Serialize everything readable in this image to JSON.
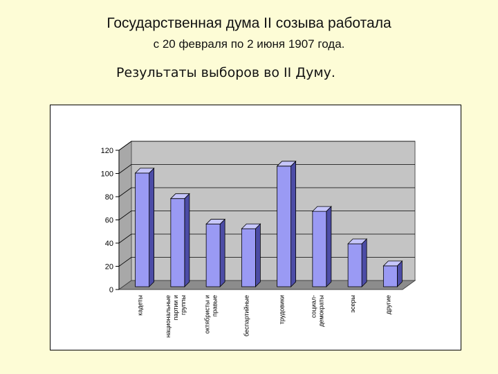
{
  "header": {
    "line1": "Государственная дума II созыва работала",
    "line2": "с 20 февраля по 2 июня 1907 года.",
    "subtitle": "Результаты выборов во II Думу."
  },
  "chart_data": {
    "type": "bar",
    "title": "",
    "xlabel": "",
    "ylabel": "",
    "ylim": [
      0,
      120
    ],
    "yticks": [
      0,
      20,
      40,
      60,
      80,
      100,
      120
    ],
    "grid": true,
    "categories": [
      "кадеты",
      "национальные партии и группы",
      "октябристы и правые",
      "беспартийные",
      "трудовики",
      "социал-демократы",
      "эсеры",
      "другие"
    ],
    "category_lines": [
      [
        "кадеты"
      ],
      [
        "национальные",
        "партии и",
        "группы"
      ],
      [
        "октябристы и",
        "правые"
      ],
      [
        "беспартийные"
      ],
      [
        "трудовики"
      ],
      [
        "социал-",
        "демократы"
      ],
      [
        "эсеры"
      ],
      [
        "другие"
      ]
    ],
    "values": [
      98,
      76,
      54,
      50,
      104,
      65,
      37,
      18
    ],
    "colors": {
      "bar_front": "#9a9af4",
      "bar_side": "#4c4ca6",
      "bar_top": "#c6c6fb",
      "wall": "#c4c4c4",
      "floor": "#8c8c8c"
    }
  }
}
